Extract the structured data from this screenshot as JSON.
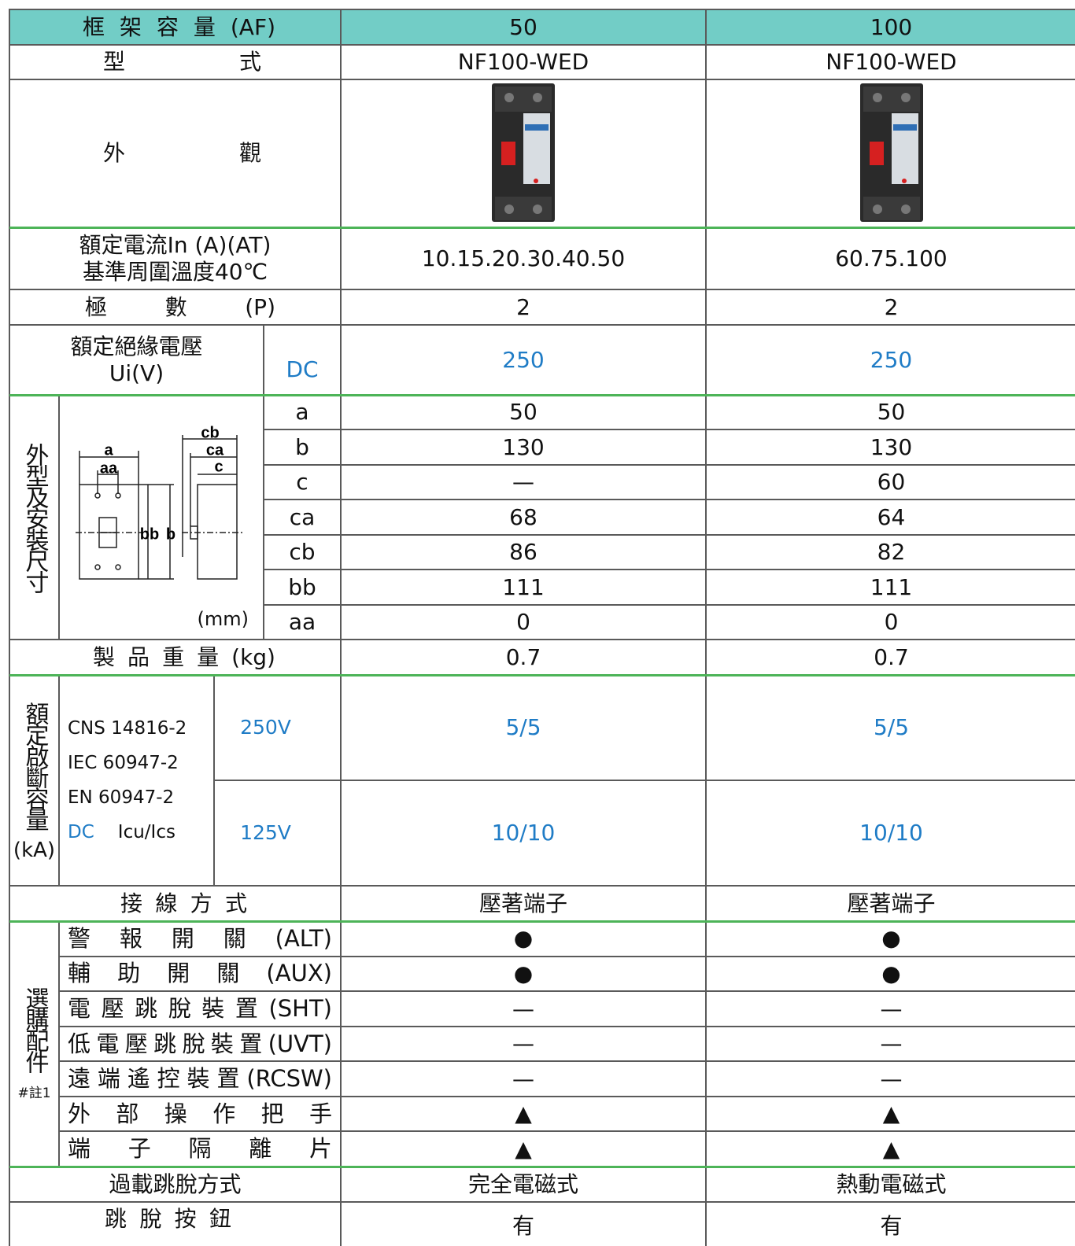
{
  "table": {
    "frame_capacity": {
      "label": "框 架 容 量 (AF)",
      "values": [
        "50",
        "100"
      ]
    },
    "model": {
      "label": "型 式",
      "values": [
        "NF100-WED",
        "NF100-WED"
      ]
    },
    "appearance": {
      "label": "外 觀"
    },
    "rated_current": {
      "label": [
        "額定電流In (A)(AT)",
        "基準周圍溫度40℃"
      ],
      "values": [
        "10.15.20.30.40.50",
        "60.75.100"
      ]
    },
    "poles": {
      "label": "極 數 (P)",
      "values": [
        "2",
        "2"
      ]
    },
    "insulation_voltage": {
      "label": [
        "額定絕緣電壓",
        "Ui(V)"
      ],
      "type": "DC",
      "values": [
        "250",
        "250"
      ]
    },
    "dimensions": {
      "label": "外型及安裝尺寸",
      "unit": "(mm)",
      "diagram_labels": {
        "a": "a",
        "aa": "aa",
        "cb": "cb",
        "ca": "ca",
        "c": "c",
        "bb": "bb",
        "b": "b"
      },
      "rows": [
        [
          "a",
          "50",
          "50"
        ],
        [
          "b",
          "130",
          "130"
        ],
        [
          "c",
          "—",
          "60"
        ],
        [
          "ca",
          "68",
          "64"
        ],
        [
          "cb",
          "86",
          "82"
        ],
        [
          "bb",
          "111",
          "111"
        ],
        [
          "aa",
          "0",
          "0"
        ]
      ]
    },
    "weight": {
      "label": "製 品 重 量 (kg)",
      "values": [
        "0.7",
        "0.7"
      ]
    },
    "breaking_capacity": {
      "label": "額定啟斷容量",
      "unit": "(kA)",
      "standards": [
        "CNS 14816-2",
        "IEC 60947-2",
        "EN 60947-2"
      ],
      "dc": "DC",
      "icu": "Icu/Ics",
      "rows": [
        [
          "250V",
          "5/5",
          "5/5"
        ],
        [
          "125V",
          "10/10",
          "10/10"
        ]
      ]
    },
    "connection": {
      "label": "接 線 方 式",
      "values": [
        "壓著端子",
        "壓著端子"
      ]
    },
    "accessories": {
      "label": "選購配件",
      "note": "#註1",
      "rows": [
        [
          "警 報 開 關 (ALT)",
          "●",
          "●"
        ],
        [
          "輔 助 開 關 (AUX)",
          "●",
          "●"
        ],
        [
          "電壓跳脫裝置(SHT)",
          "—",
          "—"
        ],
        [
          "低電壓跳脫裝置(UVT)",
          "—",
          "—"
        ],
        [
          "遠端遙控裝置(RCSW)",
          "—",
          "—"
        ],
        [
          "外 部 操 作 把 手",
          "▲",
          "▲"
        ],
        [
          "端 子 隔 離 片",
          "▲",
          "▲"
        ]
      ]
    },
    "overload_trip": {
      "label": "過載跳脫方式",
      "values": [
        "完全電磁式",
        "熱動電磁式"
      ]
    },
    "trip_button": {
      "label": "跳 脫 按 鈕",
      "values": [
        "有",
        "有"
      ]
    }
  }
}
